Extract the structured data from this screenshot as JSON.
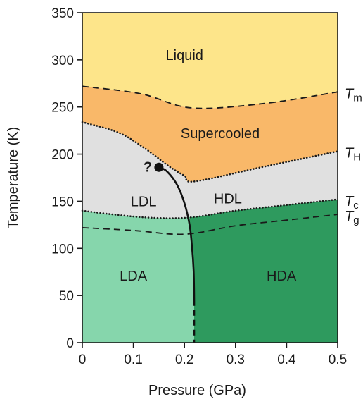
{
  "chart_data": {
    "type": "area",
    "xlabel": "Pressure (GPa)",
    "ylabel": "Temperature (K)",
    "xlim": [
      0,
      0.5
    ],
    "ylim": [
      0,
      350
    ],
    "xticks": [
      0,
      0.1,
      0.2,
      0.3,
      0.4,
      0.5
    ],
    "yticks": [
      0,
      50,
      100,
      150,
      200,
      250,
      300,
      350
    ],
    "grid": false,
    "colors": {
      "liquid": "#fde58a",
      "supercooled": "#f9b869",
      "ldl_hdl": "#e0e0e0",
      "lda": "#86d6ac",
      "hda": "#2e9a5e"
    },
    "regions": [
      {
        "label": "Liquid",
        "at": [
          0.2,
          305
        ]
      },
      {
        "label": "Supercooled",
        "at": [
          0.27,
          222
        ]
      },
      {
        "label": "LDL",
        "at": [
          0.12,
          150
        ]
      },
      {
        "label": "HDL",
        "at": [
          0.285,
          153
        ]
      },
      {
        "label": "LDA",
        "at": [
          0.1,
          71
        ]
      },
      {
        "label": "HDA",
        "at": [
          0.39,
          71
        ]
      }
    ],
    "boundaries": [
      {
        "name": "Tm",
        "label_main": "T",
        "label_sub": "m",
        "style": "dashed",
        "points": [
          [
            0,
            272
          ],
          [
            0.115,
            264
          ],
          [
            0.215,
            249
          ],
          [
            0.36,
            254
          ],
          [
            0.5,
            266
          ]
        ]
      },
      {
        "name": "TH",
        "label_main": "T",
        "label_sub": "H",
        "style": "dotted",
        "points": [
          [
            0,
            234
          ],
          [
            0.07,
            223
          ],
          [
            0.12,
            207
          ],
          [
            0.17,
            187
          ],
          [
            0.2,
            177
          ],
          [
            0.22,
            171
          ],
          [
            0.35,
            186
          ],
          [
            0.5,
            203
          ]
        ]
      },
      {
        "name": "Tc",
        "label_main": "T",
        "label_sub": "c",
        "style": "dotted",
        "points": [
          [
            0,
            140
          ],
          [
            0.06,
            136
          ],
          [
            0.12,
            133
          ],
          [
            0.18,
            132
          ],
          [
            0.23,
            134
          ],
          [
            0.3,
            140
          ],
          [
            0.4,
            146
          ],
          [
            0.5,
            152
          ]
        ]
      },
      {
        "name": "Tg",
        "label_main": "T",
        "label_sub": "g",
        "style": "dashed",
        "points": [
          [
            0,
            122
          ],
          [
            0.1,
            119
          ],
          [
            0.2,
            115
          ],
          [
            0.3,
            124
          ],
          [
            0.4,
            130
          ],
          [
            0.5,
            136
          ]
        ]
      }
    ],
    "amorphous_divide": {
      "solid": [
        [
          0.15,
          186
        ],
        [
          0.165,
          182
        ],
        [
          0.185,
          168
        ],
        [
          0.2,
          148
        ],
        [
          0.21,
          125
        ],
        [
          0.215,
          100
        ],
        [
          0.218,
          75
        ],
        [
          0.219,
          45
        ]
      ],
      "dashed": [
        [
          0.219,
          45
        ],
        [
          0.219,
          0
        ]
      ]
    },
    "critical_point": {
      "x": 0.15,
      "y": 186,
      "label": "?"
    }
  }
}
